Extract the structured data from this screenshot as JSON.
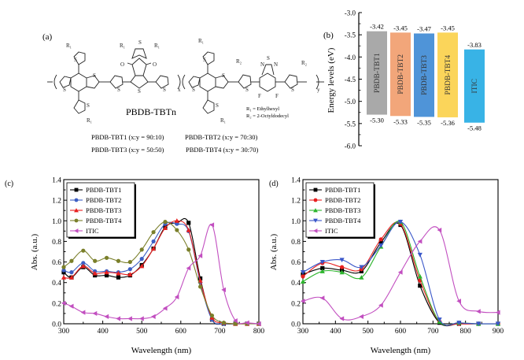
{
  "panel_a": {
    "label": "(a)",
    "polymer_name": "PBDB-TBTn",
    "substituents": [
      "R₁ = Ethylhexyl",
      "R₂ = 2-Octyldodecyl"
    ],
    "r_labels": {
      "r1": "R₁",
      "r2": "R₂"
    },
    "atoms": {
      "S": "S",
      "O": "O",
      "N": "N",
      "F": "F",
      "x": "x",
      "y": "y"
    },
    "ratios": [
      "PBDB-TBT1 (x:y = 90:10)",
      "PBDB-TBT2 (x:y = 70:30)",
      "PBDB-TBT3 (x:y = 50:50)",
      "PBDB-TBT4 (x:y = 30:70)"
    ]
  },
  "chart_data": [
    {
      "panel": "(b)",
      "type": "bar",
      "title": "",
      "ylabel": "Energy levels (eV)",
      "ylim": [
        -6.0,
        -3.0
      ],
      "yticks": [
        "-3.0",
        "-3.5",
        "-4.0",
        "-4.5",
        "-5.0",
        "-5.5",
        "-6.0"
      ],
      "categories": [
        "PBDB-TBT1",
        "PBDB-TBT2",
        "PBDB-TBT3",
        "PBDB-TBT4",
        "ITIC"
      ],
      "lumo": [
        -3.42,
        -3.45,
        -3.47,
        -3.45,
        -3.83
      ],
      "homo": [
        -5.3,
        -5.33,
        -5.35,
        -5.36,
        -5.48
      ],
      "lumo_labels": [
        "-3.42",
        "-3.45",
        "-3.47",
        "-3.45",
        "-3.83"
      ],
      "homo_labels": [
        "-5.30",
        "-5.33",
        "-5.35",
        "-5.36",
        "-5.48"
      ],
      "colors": [
        "#a9a9a9",
        "#f2a67a",
        "#4f94d8",
        "#fbd55a",
        "#38b3e6"
      ]
    },
    {
      "panel": "(c)",
      "type": "line",
      "xlabel": "Wavelength (nm)",
      "ylabel": "Abs. (a.u.)",
      "xlim": [
        300,
        800
      ],
      "ylim": [
        0.0,
        1.4
      ],
      "xticks": [
        "300",
        "400",
        "500",
        "600",
        "700",
        "800"
      ],
      "yticks": [
        "0.0",
        "0.2",
        "0.4",
        "0.6",
        "0.8",
        "1.0",
        "1.2",
        "1.4"
      ],
      "legend": "top-left",
      "series": [
        {
          "name": "PBDB-TBT1",
          "color": "#000000",
          "marker": "square",
          "x": [
            300,
            320,
            350,
            380,
            410,
            440,
            470,
            500,
            530,
            560,
            590,
            620,
            650,
            680,
            710,
            740,
            770,
            800
          ],
          "y": [
            0.5,
            0.45,
            0.55,
            0.47,
            0.47,
            0.45,
            0.47,
            0.57,
            0.73,
            0.94,
            0.98,
            0.98,
            0.44,
            0.04,
            0.0,
            0.0,
            0.0,
            0.0
          ]
        },
        {
          "name": "PBDB-TBT2",
          "color": "#3e5fc4",
          "marker": "circle",
          "x": [
            300,
            320,
            350,
            380,
            410,
            440,
            470,
            500,
            530,
            560,
            590,
            620,
            650,
            680,
            710,
            740,
            770,
            800
          ],
          "y": [
            0.52,
            0.5,
            0.59,
            0.51,
            0.51,
            0.5,
            0.53,
            0.63,
            0.8,
            0.97,
            0.97,
            0.9,
            0.4,
            0.04,
            0.0,
            0.0,
            0.0,
            0.0
          ]
        },
        {
          "name": "PBDB-TBT3",
          "color": "#e82020",
          "marker": "triangle-up",
          "x": [
            300,
            320,
            350,
            380,
            410,
            440,
            470,
            500,
            530,
            560,
            590,
            620,
            650,
            680,
            710,
            740,
            770,
            800
          ],
          "y": [
            0.45,
            0.45,
            0.56,
            0.49,
            0.5,
            0.49,
            0.48,
            0.56,
            0.73,
            0.93,
            1.0,
            0.91,
            0.42,
            0.06,
            0.01,
            0.0,
            0.0,
            0.0
          ]
        },
        {
          "name": "PBDB-TBT4",
          "color": "#7a7f2a",
          "marker": "circle",
          "x": [
            300,
            320,
            350,
            380,
            410,
            440,
            470,
            500,
            530,
            560,
            590,
            620,
            650,
            680,
            710,
            740,
            770,
            800
          ],
          "y": [
            0.55,
            0.61,
            0.71,
            0.61,
            0.64,
            0.61,
            0.6,
            0.72,
            0.89,
            0.99,
            0.91,
            0.72,
            0.36,
            0.08,
            0.01,
            0.0,
            0.0,
            0.0
          ]
        },
        {
          "name": "ITIC",
          "color": "#c24fc0",
          "marker": "triangle-left",
          "x": [
            300,
            320,
            350,
            380,
            410,
            440,
            470,
            500,
            530,
            560,
            590,
            620,
            650,
            680,
            710,
            740,
            770,
            800
          ],
          "y": [
            0.2,
            0.17,
            0.11,
            0.1,
            0.07,
            0.05,
            0.05,
            0.05,
            0.07,
            0.15,
            0.26,
            0.54,
            0.66,
            0.96,
            0.33,
            0.03,
            0.01,
            0.0
          ]
        }
      ]
    },
    {
      "panel": "(d)",
      "type": "line",
      "xlabel": "Wavelength (nm)",
      "ylabel": "Abs. (a.u.)",
      "xlim": [
        300,
        900
      ],
      "ylim": [
        0.0,
        1.4
      ],
      "xticks": [
        "300",
        "400",
        "500",
        "600",
        "700",
        "800",
        "900"
      ],
      "yticks": [
        "0.0",
        "0.2",
        "0.4",
        "0.6",
        "0.8",
        "1.0",
        "1.2",
        "1.4"
      ],
      "legend": "top-left",
      "series": [
        {
          "name": "PBDB-TBT1",
          "color": "#000000",
          "marker": "square",
          "x": [
            300,
            360,
            420,
            480,
            540,
            600,
            660,
            720,
            780,
            840,
            900
          ],
          "y": [
            0.48,
            0.54,
            0.52,
            0.51,
            0.79,
            0.96,
            0.37,
            0.01,
            0.0,
            0.0,
            0.0
          ]
        },
        {
          "name": "PBDB-TBT2",
          "color": "#e82020",
          "marker": "circle",
          "x": [
            300,
            360,
            420,
            480,
            540,
            600,
            660,
            720,
            780,
            840,
            900
          ],
          "y": [
            0.46,
            0.59,
            0.55,
            0.53,
            0.82,
            0.97,
            0.42,
            0.02,
            0.0,
            0.0,
            0.0
          ]
        },
        {
          "name": "PBDB-TBT3",
          "color": "#2db52d",
          "marker": "triangle-up",
          "x": [
            300,
            360,
            420,
            480,
            540,
            600,
            660,
            720,
            780,
            840,
            900
          ],
          "y": [
            0.41,
            0.51,
            0.5,
            0.45,
            0.75,
            0.99,
            0.46,
            0.02,
            0.01,
            0.0,
            0.0
          ]
        },
        {
          "name": "PBDB-TBT4",
          "color": "#3a57c9",
          "marker": "triangle-down",
          "x": [
            300,
            360,
            420,
            480,
            540,
            600,
            660,
            720,
            780,
            840,
            900
          ],
          "y": [
            0.5,
            0.6,
            0.62,
            0.55,
            0.76,
            0.99,
            0.67,
            0.04,
            0.01,
            0.0,
            0.0
          ]
        },
        {
          "name": "ITIC",
          "color": "#c24fc0",
          "marker": "triangle-left",
          "x": [
            300,
            360,
            420,
            480,
            540,
            600,
            660,
            720,
            780,
            840,
            900
          ],
          "y": [
            0.22,
            0.25,
            0.05,
            0.07,
            0.18,
            0.5,
            0.8,
            0.91,
            0.22,
            0.12,
            0.11
          ]
        }
      ]
    }
  ]
}
